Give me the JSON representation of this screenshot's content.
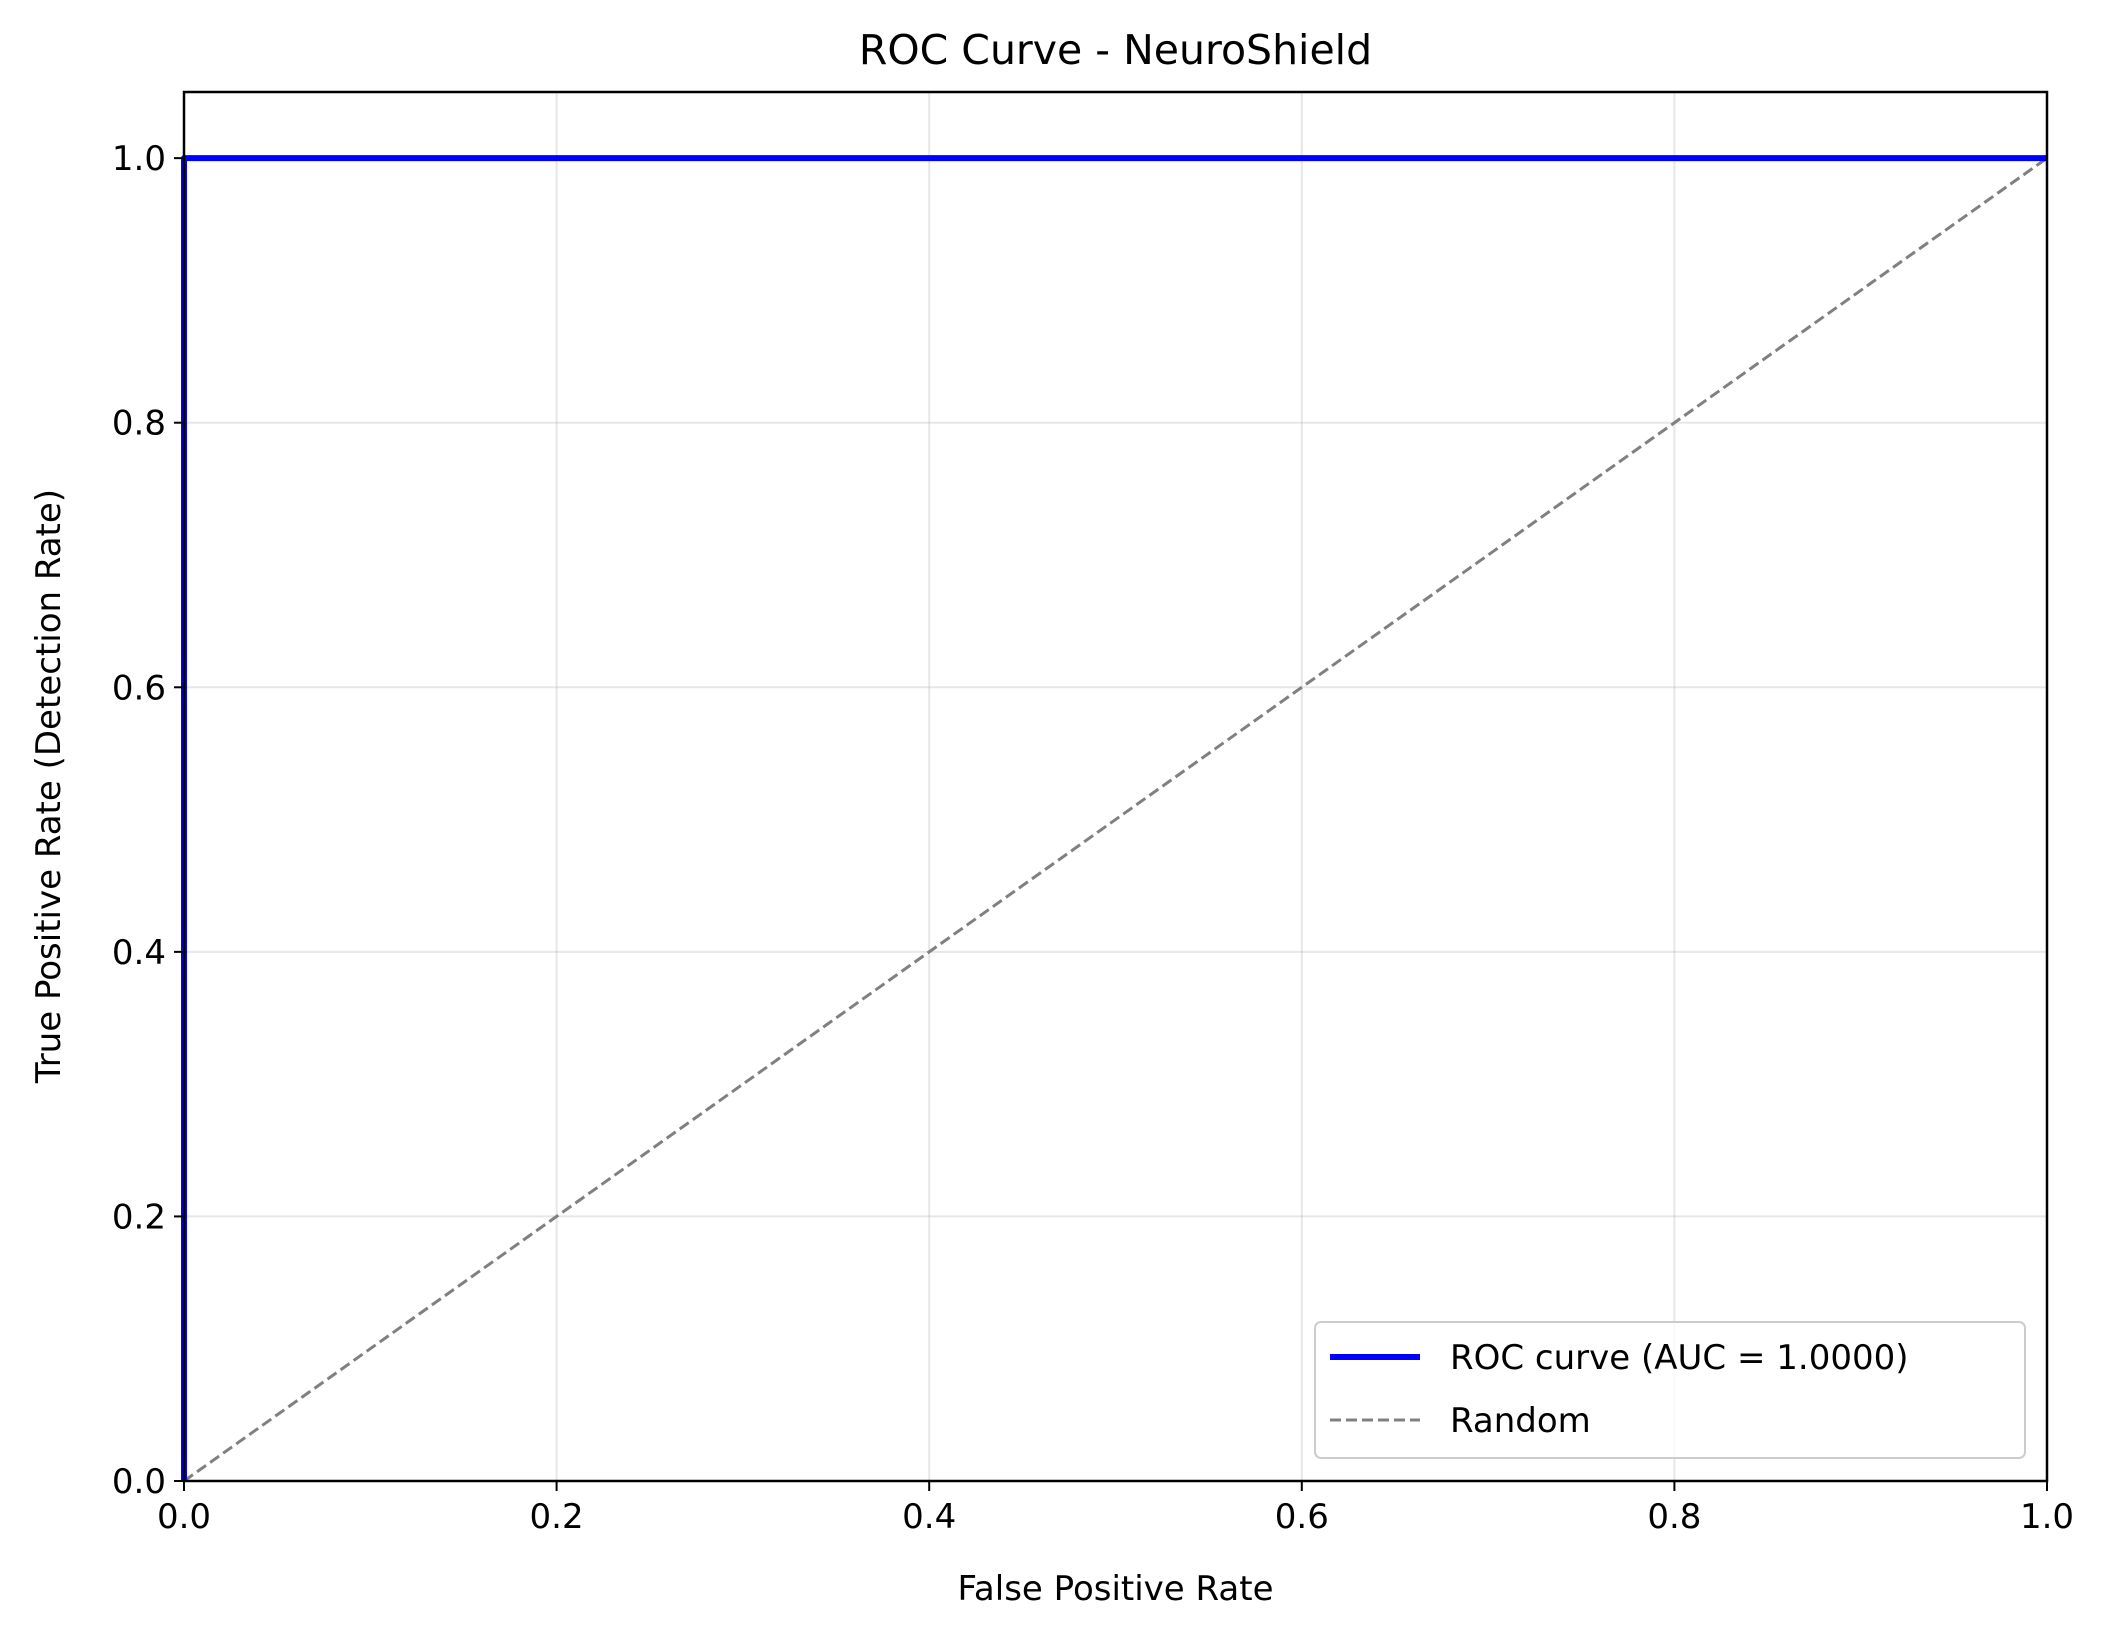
{
  "chart_data": {
    "type": "line",
    "title": "ROC Curve - NeuroShield",
    "xlabel": "False Positive Rate",
    "ylabel": "True Positive Rate (Detection Rate)",
    "xlim": [
      0.0,
      1.0
    ],
    "ylim": [
      0.0,
      1.05
    ],
    "xticks": [
      0.0,
      0.2,
      0.4,
      0.6,
      0.8,
      1.0
    ],
    "yticks": [
      0.0,
      0.2,
      0.4,
      0.6,
      0.8,
      1.0
    ],
    "xtick_labels": [
      "0.0",
      "0.2",
      "0.4",
      "0.6",
      "0.8",
      "1.0"
    ],
    "ytick_labels": [
      "0.0",
      "0.2",
      "0.4",
      "0.6",
      "0.8",
      "1.0"
    ],
    "grid": true,
    "legend_position": "lower-right",
    "series": [
      {
        "name": "ROC curve (AUC = 1.0000)",
        "x": [
          0.0,
          0.0,
          1.0
        ],
        "y": [
          0.0,
          1.0,
          1.0
        ],
        "color": "#0000ff",
        "style": "solid"
      },
      {
        "name": "Random",
        "x": [
          0.0,
          1.0
        ],
        "y": [
          0.0,
          1.0
        ],
        "color": "#808080",
        "style": "dashed"
      }
    ]
  }
}
